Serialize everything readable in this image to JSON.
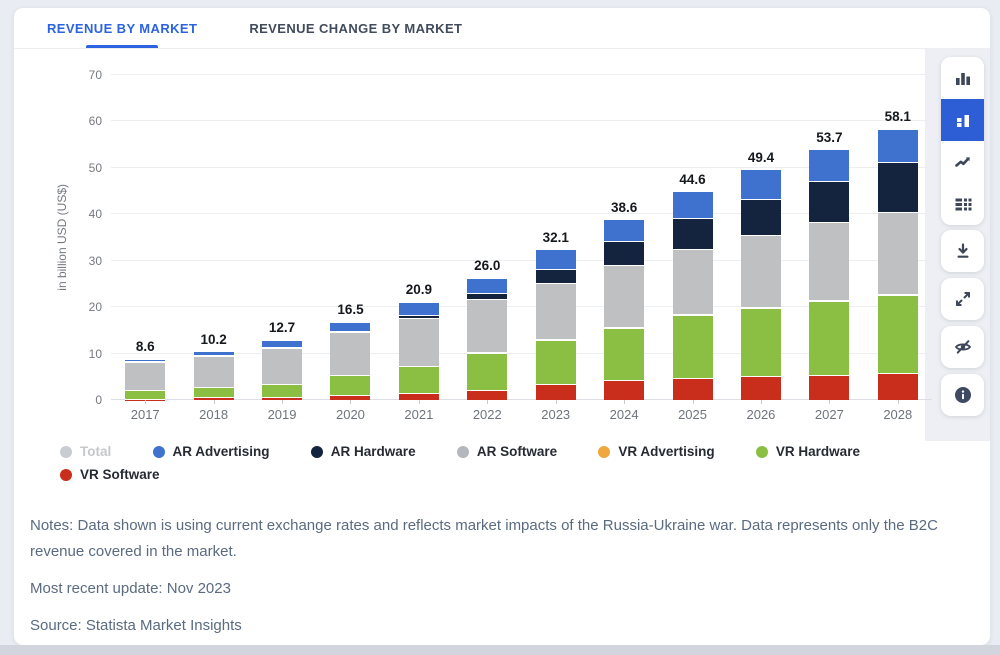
{
  "tabs": {
    "items": [
      {
        "label": "REVENUE BY MARKET",
        "active": true
      },
      {
        "label": "REVENUE CHANGE BY MARKET",
        "active": false
      }
    ]
  },
  "chart_data": {
    "type": "bar",
    "stacked": true,
    "title": "",
    "xlabel": "",
    "ylabel": "in billion USD (US$)",
    "ylim": [
      0,
      70
    ],
    "yticks": [
      0,
      10,
      20,
      30,
      40,
      50,
      60,
      70
    ],
    "grid": true,
    "legend_position": "bottom",
    "categories": [
      "2017",
      "2018",
      "2019",
      "2020",
      "2021",
      "2022",
      "2023",
      "2024",
      "2025",
      "2026",
      "2027",
      "2028"
    ],
    "totals": [
      8.6,
      10.2,
      12.7,
      16.5,
      20.9,
      26.0,
      32.1,
      38.6,
      44.6,
      49.4,
      53.7,
      58.1
    ],
    "series": [
      {
        "name": "VR Software",
        "color": "#c92d1c",
        "values": [
          0.1,
          0.4,
          0.4,
          0.8,
          1.2,
          2.0,
          3.2,
          4.1,
          4.6,
          4.9,
          5.1,
          5.6
        ]
      },
      {
        "name": "VR Hardware",
        "color": "#8bbf44",
        "values": [
          1.8,
          2.1,
          2.9,
          4.3,
          5.9,
          8.0,
          9.5,
          11.3,
          13.4,
          14.7,
          16.0,
          16.8
        ]
      },
      {
        "name": "VR Advertising",
        "color": "#f0a73e",
        "values": [
          0.0,
          0.0,
          0.0,
          0.0,
          0.0,
          0.1,
          0.1,
          0.1,
          0.1,
          0.1,
          0.1,
          0.1
        ]
      },
      {
        "name": "AR Software",
        "color": "#bfc0c2",
        "values": [
          6.1,
          6.7,
          7.7,
          9.4,
          10.3,
          11.3,
          12.0,
          13.2,
          14.0,
          15.5,
          16.8,
          17.6
        ]
      },
      {
        "name": "AR Hardware",
        "color": "#14243e",
        "values": [
          0.1,
          0.1,
          0.2,
          0.2,
          0.6,
          1.3,
          3.1,
          5.2,
          6.7,
          7.8,
          8.8,
          10.9
        ]
      },
      {
        "name": "AR Advertising",
        "color": "#3f71cf",
        "values": [
          0.5,
          0.9,
          1.5,
          1.8,
          2.9,
          3.3,
          4.2,
          4.7,
          5.8,
          6.4,
          6.9,
          7.1
        ]
      }
    ],
    "legend": [
      {
        "label": "Total",
        "color": "#c9ccd2",
        "muted": true
      },
      {
        "label": "AR Advertising",
        "color": "#3f71cf",
        "muted": false
      },
      {
        "label": "AR Hardware",
        "color": "#14243e",
        "muted": false
      },
      {
        "label": "AR Software",
        "color": "#b4b7bb",
        "muted": false
      },
      {
        "label": "VR Advertising",
        "color": "#f0a73e",
        "muted": false
      },
      {
        "label": "VR Hardware",
        "color": "#8bbf44",
        "muted": false
      },
      {
        "label": "VR Software",
        "color": "#c92d1c",
        "muted": false
      }
    ]
  },
  "toolbar": {
    "active_color": "#2d5ed6",
    "chart_type_buttons": [
      {
        "name": "column-chart",
        "active": false
      },
      {
        "name": "stacked-column-chart",
        "active": true
      },
      {
        "name": "line-chart",
        "active": false
      },
      {
        "name": "data-table",
        "active": false
      }
    ],
    "action_buttons": [
      {
        "name": "download"
      },
      {
        "name": "expand"
      },
      {
        "name": "hide"
      },
      {
        "name": "info"
      }
    ]
  },
  "footer": {
    "notes": "Notes: Data shown is using current exchange rates and reflects market impacts of the Russia-Ukraine war. Data represents only the B2C revenue covered in the market.",
    "updated": "Most recent update: Nov 2023",
    "source": "Source: Statista Market Insights"
  }
}
